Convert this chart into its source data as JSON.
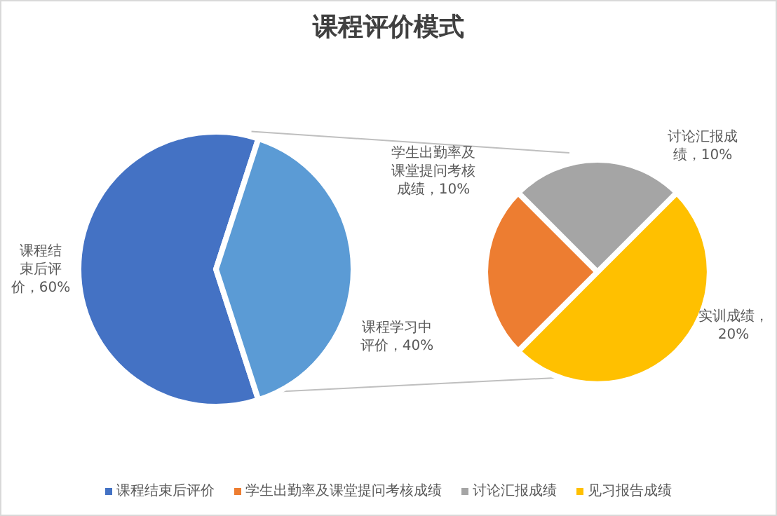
{
  "chart_data": [
    {
      "type": "pie",
      "title": "课程评价模式",
      "categories": [
        "课程结束后评价",
        null
      ],
      "values": [
        60,
        40
      ],
      "colors": [
        "#4472c4",
        "#5b9bd5"
      ],
      "value_labels": [
        "课程结束后评价，60%",
        "课程学习中评价，40%"
      ],
      "legend": "bottom"
    },
    {
      "type": "pie",
      "categories": [
        "学生出勤率及课堂提问考核成绩",
        "讨论汇报成绩",
        "见习报告成绩"
      ],
      "values": [
        10,
        10,
        20
      ],
      "colors": [
        "#ed7d31",
        "#a5a5a5",
        "#ffc000"
      ],
      "value_labels": [
        "学生出勤率及课堂提问考核成绩，10%",
        "讨论汇报成绩，10%",
        "实训成绩，20%"
      ],
      "legend": "bottom"
    }
  ]
}
